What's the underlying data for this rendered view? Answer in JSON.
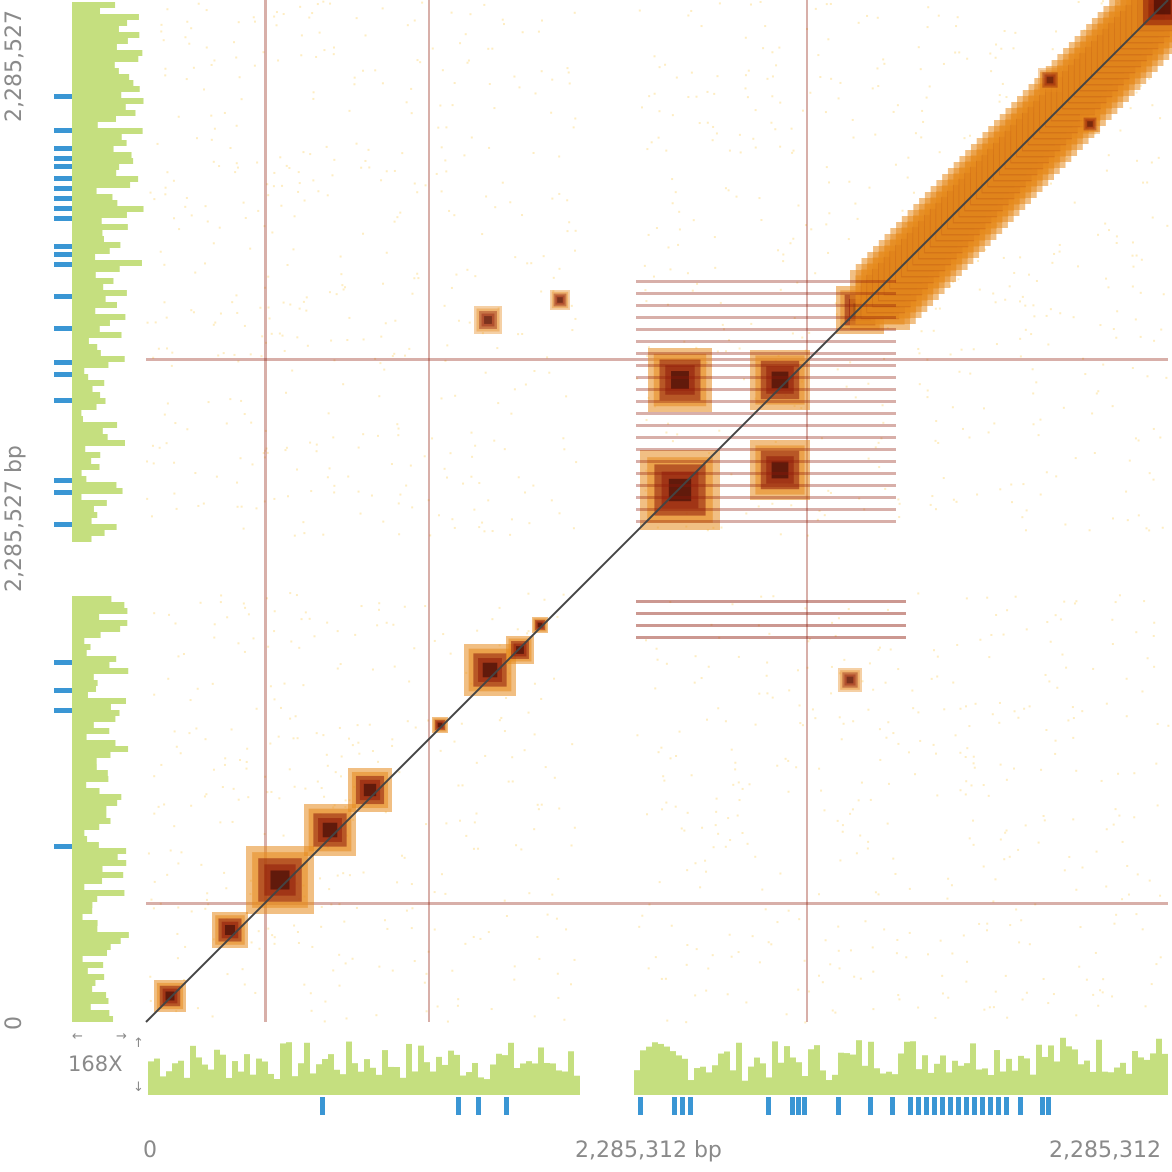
{
  "axes": {
    "x_start": "0",
    "x_mid": "2,285,312 bp",
    "x_end": "2,285,312",
    "y_start": "0",
    "y_mid": "2,285,527 bp",
    "y_end": "2,285,527"
  },
  "coverage_scale": {
    "label": "168X"
  },
  "colors": {
    "coverage": "#c5df7f",
    "features": "#3a96d4",
    "contact_low": "#fde6a8",
    "contact_mid": "#e68a1d",
    "contact_high": "#8e1a0a",
    "contact_max": "#2d0404",
    "diagonal": "#444444"
  }
}
